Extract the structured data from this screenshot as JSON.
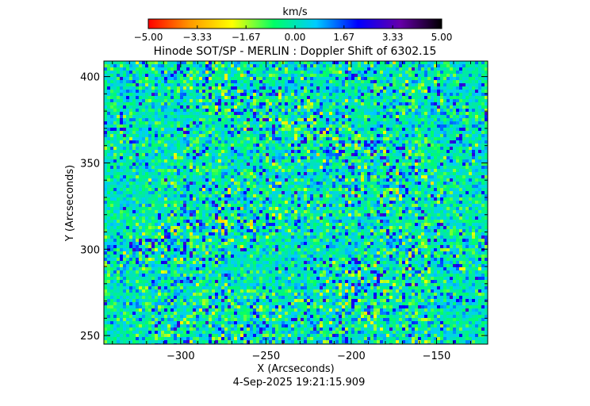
{
  "chart_data": {
    "type": "heatmap",
    "title": "Hinode SOT/SP - MERLIN : Doppler Shift of 6302.15",
    "xlabel": "X (Arcseconds)",
    "ylabel": "Y (Arcseconds)",
    "footer": "4-Sep-2025 19:21:15.909",
    "xlim": [
      -345,
      -120
    ],
    "ylim": [
      245,
      409
    ],
    "x_ticks": [
      -300,
      -250,
      -200,
      -150
    ],
    "x_tick_labels": [
      "−300",
      "−250",
      "−200",
      "−150"
    ],
    "y_ticks": [
      250,
      300,
      350,
      400
    ],
    "y_tick_labels": [
      "250",
      "300",
      "350",
      "400"
    ],
    "colorbar": {
      "title": "km/s",
      "range": [
        -5.0,
        5.0
      ],
      "ticks": [
        -5.0,
        -3.33,
        -1.67,
        0.0,
        1.67,
        3.33,
        5.0
      ],
      "tick_labels": [
        "−5.00",
        "−3.33",
        "−1.67",
        "0.00",
        "1.67",
        "3.33",
        "5.00"
      ],
      "colors": [
        "#ff0000",
        "#ff9900",
        "#ffff00",
        "#00ff66",
        "#00ccff",
        "#0000ff",
        "#6600aa",
        "#000000"
      ]
    },
    "grid": false,
    "legend": "none"
  }
}
